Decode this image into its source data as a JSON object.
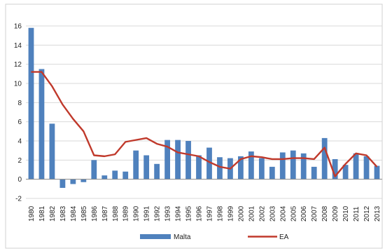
{
  "chart_data": {
    "type": "bar",
    "title": "",
    "xlabel": "",
    "ylabel": "",
    "ylim": [
      -2,
      16
    ],
    "yticks": [
      -2,
      0,
      2,
      4,
      6,
      8,
      10,
      12,
      14,
      16
    ],
    "grid": true,
    "legend_position": "bottom",
    "categories": [
      "1980",
      "1981",
      "1982",
      "1983",
      "1984",
      "1985",
      "1986",
      "1987",
      "1988",
      "1989",
      "1990",
      "1991",
      "1992",
      "1993",
      "1994",
      "1995",
      "1996",
      "1997",
      "1998",
      "1999",
      "2000",
      "2001",
      "2002",
      "2003",
      "2004",
      "2005",
      "2006",
      "2007",
      "2008",
      "2009",
      "2010",
      "2011",
      "2012",
      "2013"
    ],
    "series": [
      {
        "name": "Malta",
        "type": "bar",
        "color": "#4f81bd",
        "values": [
          15.8,
          11.5,
          5.8,
          -0.9,
          -0.5,
          -0.3,
          2.0,
          0.4,
          0.9,
          0.8,
          3.0,
          2.5,
          1.6,
          4.1,
          4.1,
          4.0,
          2.5,
          3.3,
          2.3,
          2.2,
          2.4,
          2.9,
          2.2,
          1.3,
          2.8,
          3.0,
          2.7,
          1.3,
          4.3,
          2.1,
          1.5,
          2.7,
          2.4,
          1.4
        ]
      },
      {
        "name": "EA",
        "type": "line",
        "color": "#c0392b",
        "values": [
          11.2,
          11.2,
          9.7,
          7.8,
          6.3,
          5.0,
          2.5,
          2.4,
          2.6,
          3.9,
          4.1,
          4.3,
          3.7,
          3.4,
          2.8,
          2.6,
          2.4,
          1.8,
          1.3,
          1.1,
          2.1,
          2.4,
          2.3,
          2.1,
          2.1,
          2.2,
          2.2,
          2.1,
          3.3,
          0.3,
          1.6,
          2.7,
          2.5,
          1.3
        ]
      }
    ]
  }
}
